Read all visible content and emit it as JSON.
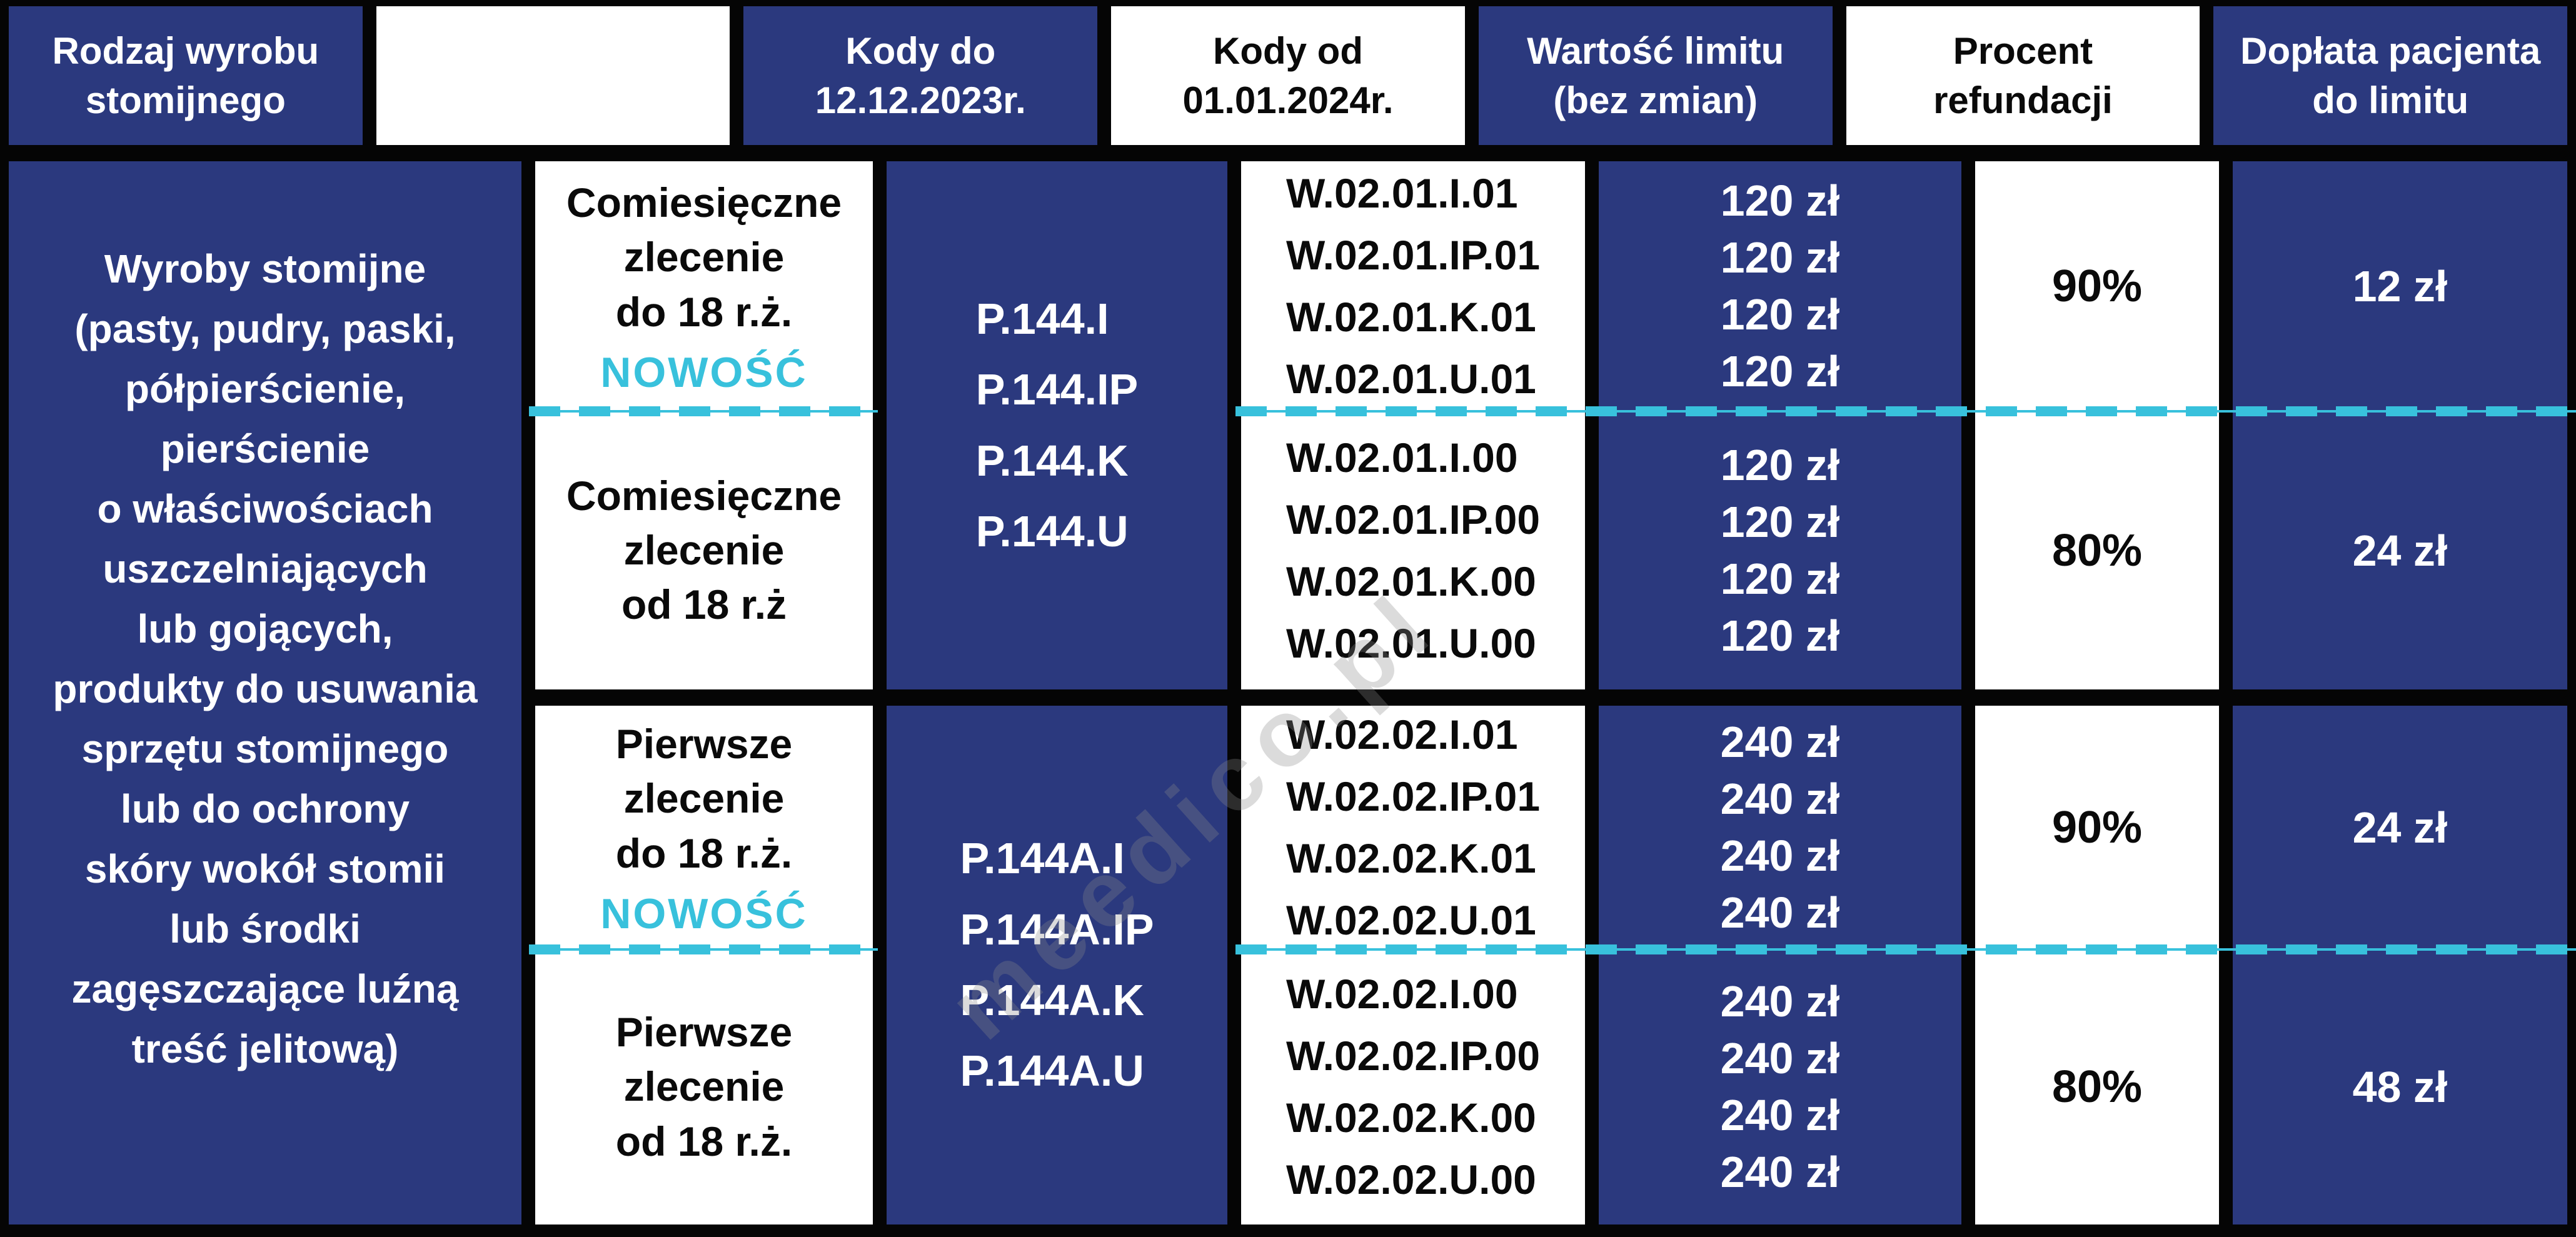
{
  "colors": {
    "navy": "#2b397e",
    "cyan": "#38c1dc"
  },
  "chart_data": {
    "type": "table",
    "headers": {
      "product_type": "Rodzaj wyrobu\nstomijnego",
      "order_type": "",
      "codes_until": "Kody do\n12.12.2023r.",
      "codes_from": "Kody od\n01.01.2024r.",
      "limit_value": "Wartość limitu\n(bez zmian)",
      "refund_percent": "Procent\nrefundacji",
      "patient_copay": "Dopłata pacjenta\ndo limitu"
    },
    "product_description": "Wyroby stomijne\n(pasty, pudry, paski,\npółpierścienie,\npierścienie\no właściwościach\nuszczelniających\nlub gojących,\nprodukty do usuwania\nsprzętu stomijnego\nlub do ochrony\nskóry wokół stomii\nlub środki\nzagęszczające luźną\ntreść jelitową)",
    "code_groups": [
      {
        "codes_until": [
          "P.144.I",
          "P.144.IP",
          "P.144.K",
          "P.144.U"
        ]
      },
      {
        "codes_until": [
          "P.144A.I",
          "P.144A.IP",
          "P.144A.K",
          "P.144A.U"
        ]
      }
    ],
    "rows": [
      {
        "order_type": "Comiesięczne\nzlecenie\ndo 18 r.ż.",
        "badge": "NOWOŚĆ",
        "codes_from": [
          "W.02.01.I.01",
          "W.02.01.IP.01",
          "W.02.01.K.01",
          "W.02.01.U.01"
        ],
        "limit_values": [
          "120 zł",
          "120 zł",
          "120 zł",
          "120 zł"
        ],
        "refund_percent": "90%",
        "patient_copay": "12 zł"
      },
      {
        "order_type": "Comiesięczne\nzlecenie\nod 18 r.ż",
        "codes_from": [
          "W.02.01.I.00",
          "W.02.01.IP.00",
          "W.02.01.K.00",
          "W.02.01.U.00"
        ],
        "limit_values": [
          "120 zł",
          "120 zł",
          "120 zł",
          "120 zł"
        ],
        "refund_percent": "80%",
        "patient_copay": "24 zł"
      },
      {
        "order_type": "Pierwsze\nzlecenie\ndo 18 r.ż.",
        "badge": "NOWOŚĆ",
        "codes_from": [
          "W.02.02.I.01",
          "W.02.02.IP.01",
          "W.02.02.K.01",
          "W.02.02.U.01"
        ],
        "limit_values": [
          "240 zł",
          "240 zł",
          "240 zł",
          "240 zł"
        ],
        "refund_percent": "90%",
        "patient_copay": "24 zł"
      },
      {
        "order_type": "Pierwsze\nzlecenie\nod 18 r.ż.",
        "codes_from": [
          "W.02.02.I.00",
          "W.02.02.IP.00",
          "W.02.02.K.00",
          "W.02.02.U.00"
        ],
        "limit_values": [
          "240 zł",
          "240 zł",
          "240 zł",
          "240 zł"
        ],
        "refund_percent": "80%",
        "patient_copay": "48 zł"
      }
    ],
    "watermark": "meedico.pl"
  }
}
